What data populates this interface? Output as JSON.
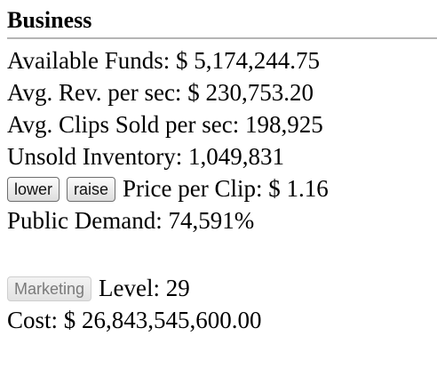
{
  "business": {
    "title": "Business",
    "funds": {
      "label": "Available Funds:",
      "value": "$ 5,174,244.75"
    },
    "revenue": {
      "label": "Avg. Rev. per sec:",
      "value": "$ 230,753.20"
    },
    "clips_sold": {
      "label": "Avg. Clips Sold per sec:",
      "value": "198,925"
    },
    "inventory": {
      "label": "Unsold Inventory:",
      "value": "1,049,831"
    },
    "price": {
      "lower_label": "lower",
      "raise_label": "raise",
      "label": "Price per Clip:",
      "value": "$ 1.16"
    },
    "demand": {
      "label": "Public Demand:",
      "value": "74,591%"
    },
    "marketing": {
      "button_label": "Marketing",
      "level_label": "Level:",
      "level_value": "29",
      "cost_label": "Cost:",
      "cost_value": "$ 26,843,545,600.00"
    }
  }
}
